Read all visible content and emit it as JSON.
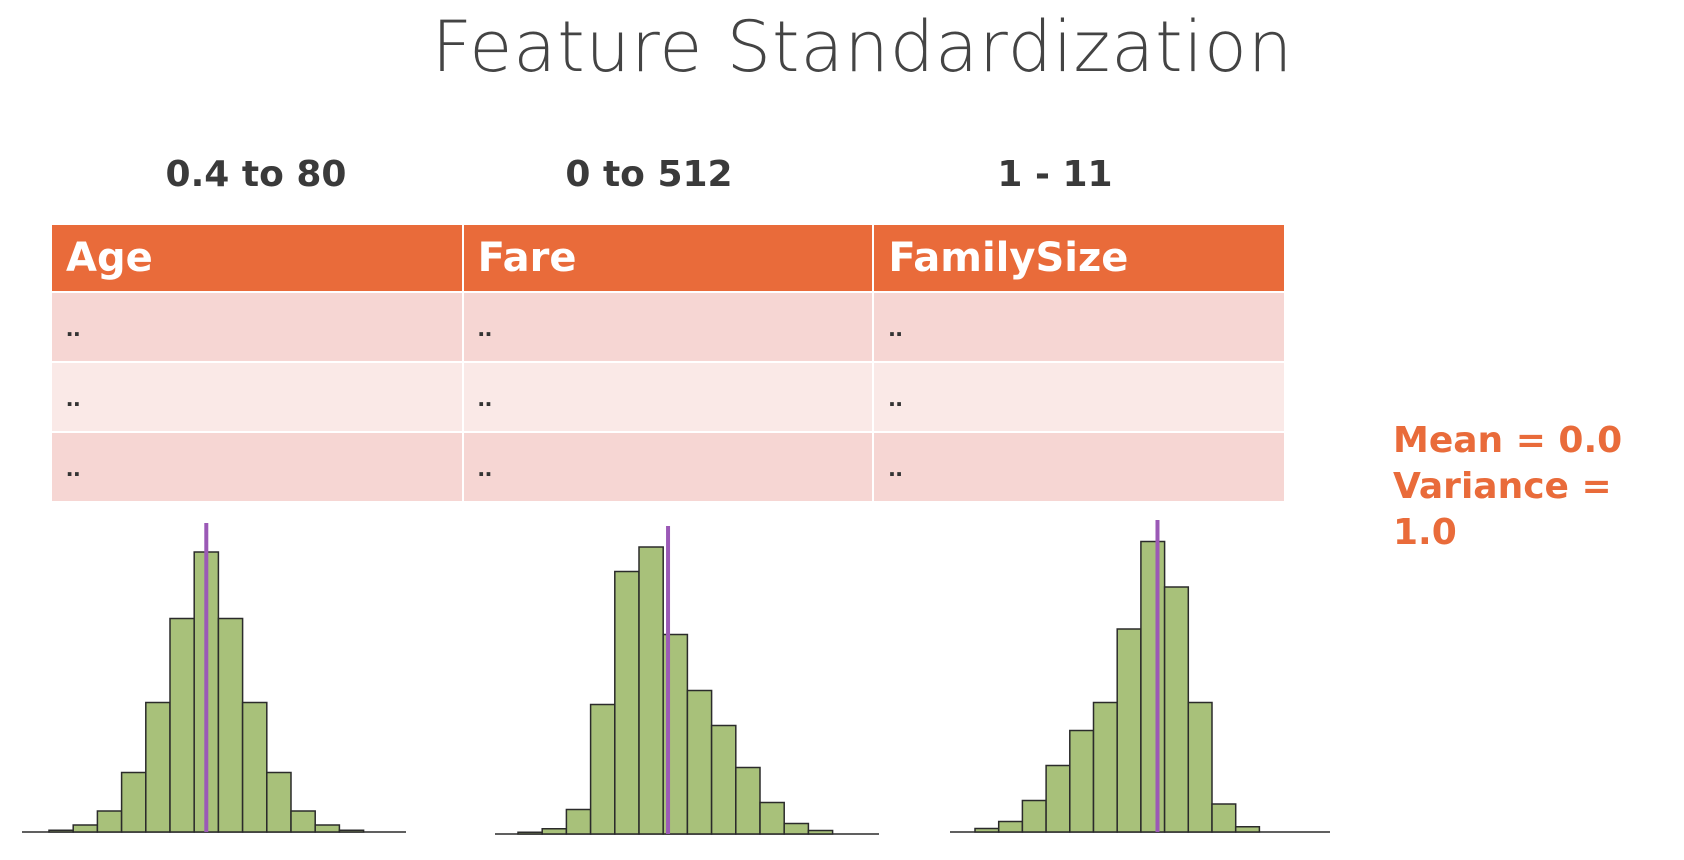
{
  "title": "Feature Standardization",
  "columns": [
    {
      "range": "0.4 to 80",
      "header": "Age"
    },
    {
      "range": "0 to 512",
      "header": "Fare"
    },
    {
      "range": "1 - 11",
      "header": "FamilySize"
    }
  ],
  "rows": [
    [
      "..",
      "..",
      ".."
    ],
    [
      "..",
      "..",
      ".."
    ],
    [
      "..",
      "..",
      ".."
    ]
  ],
  "stats": {
    "mean": "Mean = 0.0",
    "variance": "Variance = 1.0"
  },
  "colors": {
    "header": "#e96b3a",
    "row_dark": "#f6d6d3",
    "row_light": "#fae9e7",
    "bar_fill": "#a8c17a",
    "bar_stroke": "#2b2b2b",
    "mean_line": "#9b59b6",
    "stats_text": "#e96b3a"
  },
  "chart_data": [
    {
      "type": "bar",
      "name": "Age",
      "values": [
        0.5,
        2,
        6,
        17,
        37,
        61,
        80,
        61,
        37,
        17,
        6,
        2,
        0.5
      ],
      "mean_bin": 6.5
    },
    {
      "type": "bar",
      "name": "Fare",
      "values": [
        0.5,
        1.5,
        7,
        37,
        75,
        82,
        57,
        41,
        31,
        19,
        9,
        3,
        1
      ],
      "mean_bin": 6.2
    },
    {
      "type": "bar",
      "name": "FamilySize",
      "values": [
        1,
        3,
        9,
        19,
        29,
        37,
        58,
        83,
        70,
        37,
        8,
        1.5
      ],
      "mean_bin": 7.7
    }
  ]
}
